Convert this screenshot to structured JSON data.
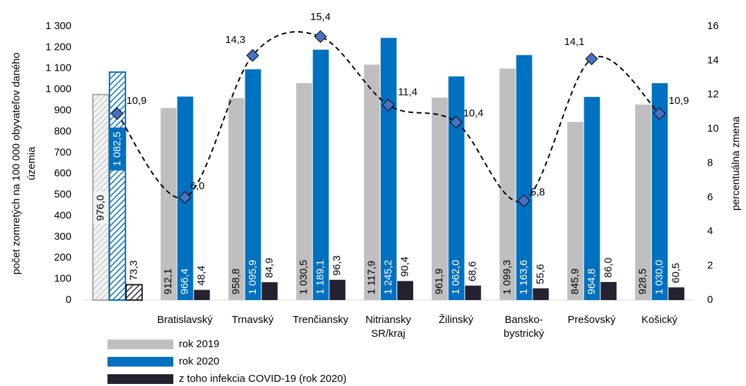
{
  "chart_data": {
    "type": "bar",
    "xlabel": "SR/kraj",
    "ylabel": [
      "počet zomretých na 100 000 obyvateľov daného",
      "územia"
    ],
    "y2label": "percentuálna zmena",
    "categories": [
      null,
      "Bratislavský",
      "Trnavský",
      "Trenčiansky",
      "Nitriansky",
      "Žilinský",
      [
        "Bansko-",
        "bystrický"
      ],
      "Prešovský",
      "Košický"
    ],
    "ylim": [
      0,
      1300
    ],
    "yticks": [
      0,
      100,
      200,
      300,
      400,
      500,
      600,
      700,
      800,
      900,
      {
        "value": 1000,
        "label": "1 000"
      },
      {
        "value": 1100,
        "label": "1 100"
      },
      {
        "value": 1200,
        "label": "1 200"
      },
      {
        "value": 1300,
        "label": "1 300"
      }
    ],
    "y2lim": [
      0,
      16
    ],
    "y2ticks": [
      0,
      2,
      4,
      6,
      8,
      10,
      12,
      14,
      16
    ],
    "series": [
      {
        "name": "rok 2019",
        "color": "#bfbfbf",
        "values": [
          976.0,
          912.1,
          958.8,
          1030.5,
          1117.9,
          961.9,
          1099.3,
          845.9,
          928.5
        ],
        "value_labels": [
          "976,0",
          "912,1",
          "958,8",
          "1 030,5",
          "1 117,9",
          "961,9",
          "1 099,3",
          "845,9",
          "928,5"
        ]
      },
      {
        "name": "rok 2020",
        "color": "#0070c0",
        "values": [
          1082.5,
          966.4,
          1095.9,
          1189.1,
          1245.2,
          1062.0,
          1163.6,
          964.8,
          1030.0
        ],
        "value_labels": [
          "1 082,5",
          "966,4",
          "1 095,9",
          "1 189,1",
          "1 245,2",
          "1 062,0",
          "1 163,6",
          "964,8",
          "1 030,0"
        ]
      },
      {
        "name": "z toho infekcia COVID-19 (rok 2020)",
        "color": "#262130",
        "values": [
          73.3,
          48.4,
          84.9,
          96.3,
          90.4,
          68.6,
          55.6,
          86.0,
          60.5
        ],
        "value_labels": [
          "73,3",
          "48,4",
          "84,9",
          "96,3",
          "90,4",
          "68,6",
          "55,6",
          "86,0",
          "60,5"
        ]
      },
      {
        "type": "line",
        "axis": "y2",
        "color": "#4472c4",
        "values": [
          10.9,
          6.0,
          14.3,
          15.4,
          11.4,
          10.4,
          5.8,
          14.1,
          10.9
        ],
        "value_labels": [
          "10,9",
          "6,0",
          "14,3",
          "15,4",
          "11,4",
          "10,4",
          "5,8",
          "14,1",
          "10,9"
        ]
      }
    ]
  }
}
